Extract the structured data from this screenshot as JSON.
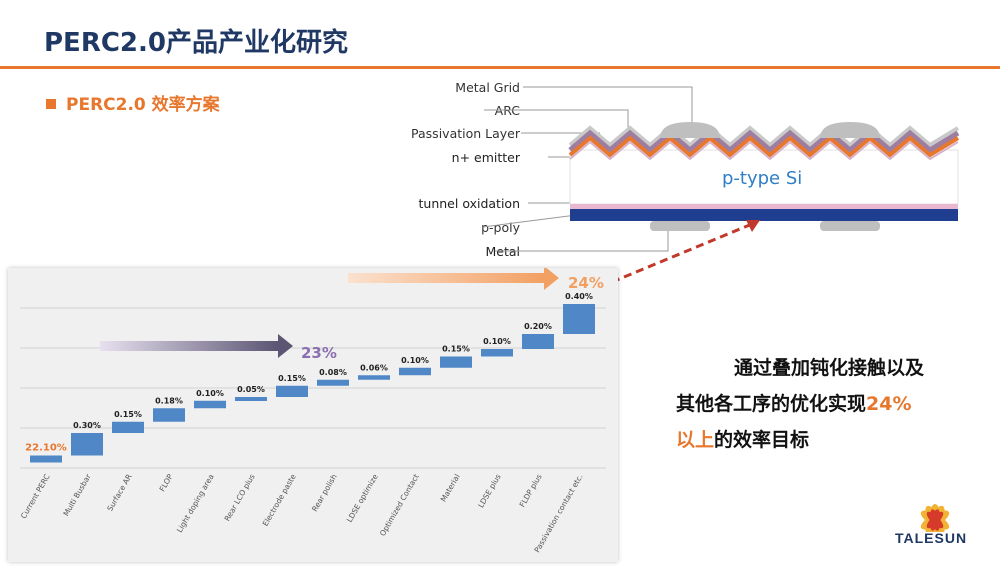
{
  "page": {
    "title": "PERC2.0产品产业化研究",
    "subtitle": "PERC2.0 效率方案"
  },
  "cell_diagram": {
    "labels": {
      "metal_grid": "Metal Grid",
      "arc": "ARC",
      "passivation": "Passivation Layer",
      "emitter": "n+ emitter",
      "tunnel": "tunnel oxidation",
      "ppoly": "p-poly",
      "metal": "Metal"
    },
    "substrate_label": "p-type Si",
    "colors": {
      "arc": "#9d7ea0",
      "emitter": "#e8772e",
      "metal": "#bfbfbf",
      "substrate_text": "#2f7ec6",
      "rear_metal": "#1f3e8f"
    }
  },
  "notes": {
    "line1": "通过叠加钝化接触以及",
    "line2_a": "其他各工序的优化实现",
    "line2_b": "24%",
    "line3_a": "以上",
    "line3_b": "的效率目标"
  },
  "logo": {
    "text": "TALESUN"
  },
  "chart_data": {
    "type": "bar",
    "subtype": "waterfall",
    "categories": [
      "Current PERC",
      "Multi Busbar",
      "Surface AR",
      "FLOP",
      "Light doping area",
      "Rear LCO plus",
      "Electrode paste",
      "Rear polish",
      "LDSE optimize",
      "Optimized Contact",
      "Material",
      "LDSE plus",
      "FLDP plus",
      "Passivation contact etc."
    ],
    "start_value": 22.1,
    "increments": [
      0.3,
      0.15,
      0.18,
      0.1,
      0.05,
      0.15,
      0.08,
      0.06,
      0.1,
      0.15,
      0.1,
      0.2,
      0.4
    ],
    "data_labels": [
      "22.10%",
      "0.30%",
      "0.15%",
      "0.18%",
      "0.10%",
      "0.05%",
      "0.15%",
      "0.08%",
      "0.06%",
      "0.10%",
      "0.15%",
      "0.10%",
      "0.20%",
      "0.40%"
    ],
    "ylim": [
      22.0,
      24.2
    ],
    "annotations": [
      {
        "text": "23%",
        "color": "#8a6fb0"
      },
      {
        "text": "24%",
        "color": "#f2a062"
      }
    ],
    "colors": {
      "bar": "#4f87c7",
      "first_label": "#e8772e"
    },
    "grid": true
  }
}
